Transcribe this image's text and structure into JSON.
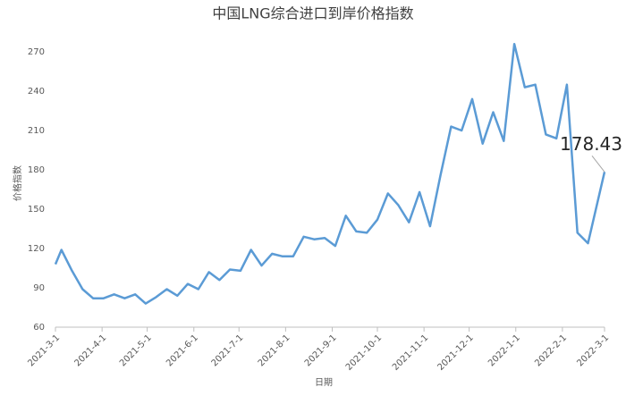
{
  "chart_data": {
    "type": "line",
    "title": "中国LNG综合进口到岸价格指数",
    "x_label": "日期",
    "y_label": "价格指数",
    "x": [
      "2021-3-1",
      "2021-3-5",
      "2021-3-12",
      "2021-3-19",
      "2021-3-26",
      "2021-4-2",
      "2021-4-9",
      "2021-4-16",
      "2021-4-23",
      "2021-4-30",
      "2021-5-7",
      "2021-5-14",
      "2021-5-21",
      "2021-5-28",
      "2021-6-4",
      "2021-6-11",
      "2021-6-18",
      "2021-6-25",
      "2021-7-2",
      "2021-7-9",
      "2021-7-16",
      "2021-7-23",
      "2021-7-30",
      "2021-8-6",
      "2021-8-13",
      "2021-8-20",
      "2021-8-27",
      "2021-9-3",
      "2021-9-10",
      "2021-9-17",
      "2021-9-24",
      "2021-10-1",
      "2021-10-8",
      "2021-10-15",
      "2021-10-22",
      "2021-10-29",
      "2021-11-5",
      "2021-11-12",
      "2021-11-19",
      "2021-11-26",
      "2021-12-3",
      "2021-12-10",
      "2021-12-17",
      "2021-12-24",
      "2021-12-31",
      "2022-1-7",
      "2022-1-14",
      "2022-1-21",
      "2022-1-28",
      "2022-2-4",
      "2022-2-11",
      "2022-2-18",
      "2022-3-1"
    ],
    "series": [
      {
        "name": "价格指数",
        "color": "#5b9bd5",
        "values": [
          108,
          119,
          103,
          89,
          82,
          82,
          85,
          82,
          85,
          78,
          83,
          89,
          84,
          93,
          89,
          102,
          96,
          104,
          103,
          119,
          107,
          116,
          114,
          114,
          129,
          127,
          128,
          122,
          145,
          133,
          132,
          142,
          162,
          153,
          140,
          163,
          137,
          176,
          213,
          210,
          234,
          200,
          224,
          202,
          276,
          243,
          245,
          207,
          204,
          245,
          132,
          124,
          178.43
        ]
      }
    ],
    "xlim": [
      "2021-3-1",
      "2022-3-1"
    ],
    "xticks": [
      "2021-3-1",
      "2021-4-1",
      "2021-5-1",
      "2021-6-1",
      "2021-7-1",
      "2021-8-1",
      "2021-9-1",
      "2021-10-1",
      "2021-11-1",
      "2021-12-1",
      "2022-1-1",
      "2022-2-1",
      "2022-3-1"
    ],
    "ylim": [
      60,
      270
    ],
    "yticks": [
      60,
      90,
      120,
      150,
      180,
      210,
      240,
      270
    ],
    "grid": false
  }
}
